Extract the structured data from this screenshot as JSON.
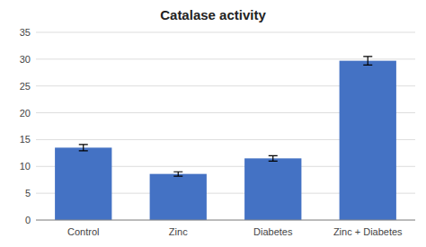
{
  "chart_data": {
    "type": "bar",
    "title": "Catalase activity",
    "categories": [
      "Control",
      "Zinc",
      "Diabetes",
      "Zinc + Diabetes"
    ],
    "values": [
      13.5,
      8.6,
      11.5,
      29.7
    ],
    "errors": [
      0.6,
      0.4,
      0.5,
      0.8
    ],
    "color": "#4472C4",
    "ylim": [
      0,
      35
    ],
    "yticks": [
      0,
      5,
      10,
      15,
      20,
      25,
      30,
      35
    ],
    "grid": true
  }
}
